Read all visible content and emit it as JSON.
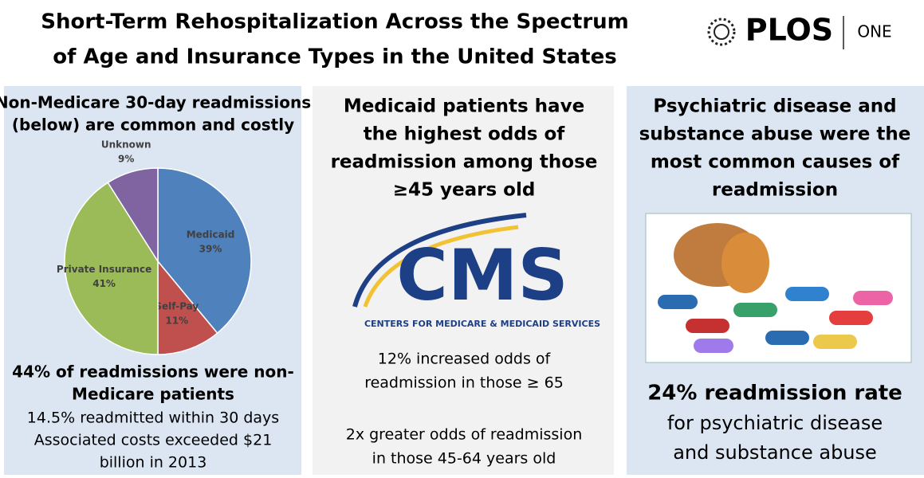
{
  "header": {
    "title_lines": [
      "Short-Term Rehospitalization Across the Spectrum",
      "of Age and Insurance Types in the United States"
    ],
    "logo": {
      "brand": "PLOS",
      "journal": "ONE"
    }
  },
  "panels": [
    {
      "heading_lines": [
        "Non-Medicare 30-day readmissions",
        "(below) are common and costly"
      ],
      "highlight_lines": [
        "44% of readmissions were non-",
        "Medicare patients"
      ],
      "body_lines": [
        "14.5% readmitted within 30 days",
        "Associated costs exceeded $21",
        "billion in 2013"
      ]
    },
    {
      "heading_lines": [
        "Medicaid patients have",
        "the highest odds of",
        "readmission among those",
        "≥45 years old"
      ],
      "logo": {
        "acronym": "CMS",
        "full_name": "CENTERS FOR MEDICARE & MEDICAID SERVICES"
      },
      "body_lines": [
        "12% increased odds of",
        "readmission in those ≥ 65"
      ],
      "body2_lines": [
        "2x greater odds of readmission",
        "in those 45-64 years old"
      ]
    },
    {
      "heading_lines": [
        "Psychiatric disease and",
        "substance abuse were the",
        "most common causes of",
        "readmission"
      ],
      "highlight_lines": [
        "24% readmission rate"
      ],
      "body_lines": [
        "for psychiatric disease",
        "and substance abuse"
      ]
    }
  ],
  "chart_data": {
    "type": "pie",
    "categories": [
      "Medicaid",
      "Self-Pay",
      "Private Insurance",
      "Unknown"
    ],
    "values": [
      39,
      11,
      41,
      9
    ],
    "value_labels": [
      "39%",
      "11%",
      "41%",
      "9%"
    ],
    "colors": [
      "#4f81bd",
      "#c0504d",
      "#9bbb59",
      "#8064a2"
    ]
  }
}
